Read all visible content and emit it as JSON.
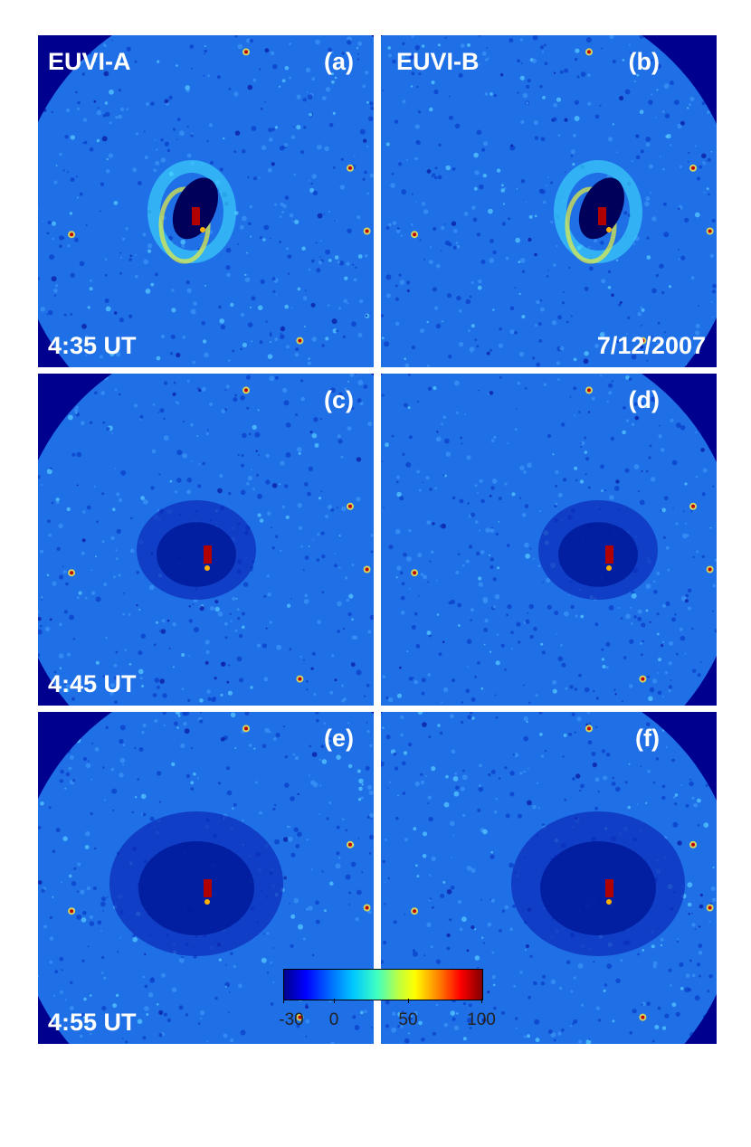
{
  "panels": [
    {
      "id": "a",
      "letter": "(a)",
      "instrument": "EUVI-A",
      "bottom_left": "4:35 UT",
      "bottom_right": ""
    },
    {
      "id": "b",
      "letter": "(b)",
      "instrument": "EUVI-B",
      "bottom_left": "",
      "bottom_right": "7/12/2007"
    },
    {
      "id": "c",
      "letter": "(c)",
      "instrument": "",
      "bottom_left": "4:45 UT",
      "bottom_right": ""
    },
    {
      "id": "d",
      "letter": "(d)",
      "instrument": "",
      "bottom_left": "",
      "bottom_right": ""
    },
    {
      "id": "e",
      "letter": "(e)",
      "instrument": "",
      "bottom_left": "4:55 UT",
      "bottom_right": ""
    },
    {
      "id": "f",
      "letter": "(f)",
      "instrument": "",
      "bottom_left": "",
      "bottom_right": ""
    }
  ],
  "colorbar": {
    "min": -30,
    "max": 100,
    "ticks": [
      {
        "value": -30,
        "label": "-30"
      },
      {
        "value": 0,
        "label": "0"
      },
      {
        "value": 50,
        "label": "50"
      },
      {
        "value": 100,
        "label": "100"
      }
    ],
    "colors": {
      "background": "#00008f",
      "disk": "#1f6fe6",
      "dimming": "#001a9a",
      "bright": "#b00000",
      "ring": "#e8f040"
    }
  }
}
